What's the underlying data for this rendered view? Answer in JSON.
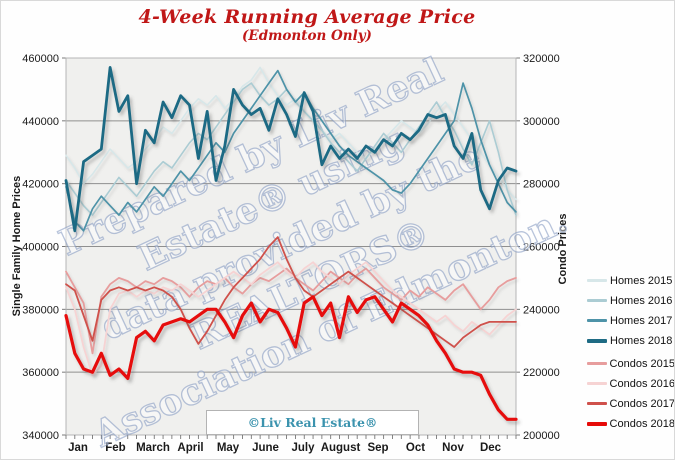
{
  "title": {
    "text": "4-Week Running Average Price",
    "subtitle": "(Edmonton Only)",
    "color": "#c01717"
  },
  "watermark": {
    "lines": [
      "Prepared by Liv Real",
      "Estate® using",
      "data provided by the",
      "REALTORS®",
      "Association of Edmonton."
    ],
    "angle_deg": -25,
    "fill_color": "rgba(255,255,255,0.45)",
    "stroke_color": "rgba(125,148,190,0.55)"
  },
  "footer_box": {
    "text": "©Liv Real Estate®",
    "color": "#3b93ae"
  },
  "colors": {
    "plot_bg": "#f0f0ee",
    "grid": "#8f8f8f",
    "axis": "#7a7a7a",
    "tick_text": "#1a1a1a"
  },
  "chart_data": {
    "type": "line",
    "title": "4-Week Running Average Price (Edmonton Only)",
    "x_axis": {
      "months": [
        "Jan",
        "Feb",
        "March",
        "April",
        "May",
        "June",
        "July",
        "August",
        "Sep",
        "Oct",
        "Nov",
        "Dec"
      ],
      "points_per_series": 52
    },
    "y_left": {
      "label": "Single Family Home Prices",
      "min": 340000,
      "max": 460000,
      "tick_step": 20000,
      "ticks": [
        460000,
        440000,
        420000,
        400000,
        380000,
        360000,
        340000
      ]
    },
    "y_right": {
      "label": "Condo Prices",
      "min": 200000,
      "max": 320000,
      "tick_step": 20000,
      "ticks": [
        320000,
        300000,
        280000,
        260000,
        240000,
        220000,
        200000
      ]
    },
    "legend_position": "right",
    "grid": true,
    "series": [
      {
        "name": "Homes 2015",
        "axis": "left",
        "color": "#d7e7e9",
        "width": 1.6,
        "values": [
          429000,
          425000,
          420000,
          423000,
          427000,
          431000,
          428000,
          425000,
          427000,
          431000,
          434000,
          438000,
          436000,
          440000,
          444000,
          447000,
          445000,
          448000,
          444000,
          447000,
          451000,
          453000,
          457000,
          452000,
          448000,
          445000,
          447000,
          443000,
          440000,
          437000,
          434000,
          436000,
          433000,
          430000,
          428000,
          431000,
          434000,
          437000,
          440000,
          438000,
          436000,
          439000,
          443000,
          446000,
          442000,
          438000,
          434000,
          430000,
          426000,
          422000,
          418000,
          415000
        ]
      },
      {
        "name": "Homes 2016",
        "axis": "left",
        "color": "#abccd3",
        "width": 1.6,
        "values": [
          421000,
          417000,
          413000,
          410000,
          414000,
          418000,
          422000,
          419000,
          416000,
          420000,
          424000,
          427000,
          425000,
          429000,
          433000,
          436000,
          434000,
          438000,
          442000,
          446000,
          450000,
          452000,
          448000,
          445000,
          447000,
          450000,
          446000,
          443000,
          440000,
          437000,
          433000,
          430000,
          427000,
          424000,
          428000,
          432000,
          436000,
          433000,
          430000,
          434000,
          438000,
          442000,
          446000,
          441000,
          437000,
          431000,
          426000,
          433000,
          440000,
          430000,
          418000,
          410000
        ]
      },
      {
        "name": "Homes 2017",
        "axis": "left",
        "color": "#4e93a8",
        "width": 1.7,
        "values": [
          419000,
          408000,
          405000,
          412000,
          416000,
          413000,
          410000,
          414000,
          411000,
          415000,
          419000,
          416000,
          420000,
          424000,
          421000,
          425000,
          429000,
          433000,
          430000,
          436000,
          440000,
          444000,
          448000,
          452000,
          456000,
          450000,
          446000,
          449000,
          444000,
          440000,
          436000,
          432000,
          429000,
          427000,
          425000,
          423000,
          421000,
          418000,
          417000,
          420000,
          424000,
          428000,
          432000,
          436000,
          440000,
          452000,
          444000,
          434000,
          426000,
          420000,
          414000,
          411000
        ]
      },
      {
        "name": "Homes 2018",
        "axis": "left",
        "color": "#1e6b84",
        "width": 2.8,
        "values": [
          421000,
          405000,
          427000,
          429000,
          431000,
          457000,
          443000,
          448000,
          420000,
          437000,
          433000,
          446000,
          441000,
          448000,
          445000,
          428000,
          443000,
          421000,
          432000,
          450000,
          445000,
          442000,
          444000,
          437000,
          447000,
          442000,
          435000,
          449000,
          443000,
          426000,
          432000,
          428000,
          431000,
          428000,
          432000,
          430000,
          434000,
          432000,
          436000,
          434000,
          437000,
          442000,
          441000,
          442000,
          432000,
          428000,
          436000,
          418000,
          412000,
          421000,
          425000,
          424000
        ]
      },
      {
        "name": "Condos 2015",
        "axis": "right",
        "color": "#e79d9d",
        "width": 1.8,
        "values": [
          252000,
          247000,
          242000,
          226000,
          244000,
          248000,
          250000,
          249000,
          247000,
          249000,
          248000,
          250000,
          249000,
          247000,
          244000,
          247000,
          249000,
          248000,
          250000,
          247000,
          245000,
          248000,
          250000,
          249000,
          251000,
          253000,
          250000,
          248000,
          246000,
          249000,
          252000,
          250000,
          248000,
          251000,
          253000,
          250000,
          247000,
          245000,
          243000,
          246000,
          244000,
          247000,
          245000,
          243000,
          246000,
          248000,
          244000,
          240000,
          243000,
          247000,
          249000,
          250000
        ]
      },
      {
        "name": "Condos 2016",
        "axis": "right",
        "color": "#f6d3d3",
        "width": 1.8,
        "values": [
          247000,
          240000,
          228000,
          219000,
          222000,
          240000,
          245000,
          246000,
          244000,
          246000,
          245000,
          247000,
          246000,
          248000,
          246000,
          244000,
          246000,
          248000,
          250000,
          252000,
          250000,
          248000,
          251000,
          253000,
          255000,
          252000,
          250000,
          253000,
          255000,
          252000,
          250000,
          248000,
          251000,
          253000,
          255000,
          252000,
          249000,
          246000,
          244000,
          242000,
          240000,
          238000,
          236000,
          238000,
          235000,
          233000,
          236000,
          234000,
          232000,
          235000,
          238000,
          240000
        ]
      },
      {
        "name": "Condos 2017",
        "axis": "right",
        "color": "#cf514b",
        "width": 1.8,
        "values": [
          248000,
          246000,
          238000,
          230000,
          243000,
          246000,
          247000,
          246000,
          247000,
          246000,
          247000,
          246000,
          244000,
          240000,
          234000,
          229000,
          233000,
          238000,
          243000,
          247000,
          250000,
          253000,
          256000,
          260000,
          263000,
          256000,
          250000,
          246000,
          244000,
          246000,
          248000,
          250000,
          252000,
          250000,
          248000,
          246000,
          244000,
          242000,
          240000,
          238000,
          236000,
          234000,
          232000,
          230000,
          228000,
          231000,
          233000,
          235000,
          236000,
          236000,
          236000,
          236000
        ]
      },
      {
        "name": "Condos 2018",
        "axis": "right",
        "color": "#e60b09",
        "width": 3.2,
        "values": [
          238000,
          226000,
          221000,
          220000,
          226000,
          219000,
          221000,
          218000,
          231000,
          233000,
          230000,
          235000,
          236000,
          237000,
          236000,
          238000,
          240000,
          240000,
          236000,
          231000,
          238000,
          242000,
          236000,
          240000,
          239000,
          234000,
          228000,
          242000,
          244000,
          238000,
          242000,
          231000,
          244000,
          239000,
          243000,
          244000,
          240000,
          236000,
          242000,
          240000,
          238000,
          235000,
          230000,
          226000,
          221000,
          220000,
          220000,
          219000,
          213000,
          208000,
          205000,
          205000
        ]
      }
    ]
  }
}
